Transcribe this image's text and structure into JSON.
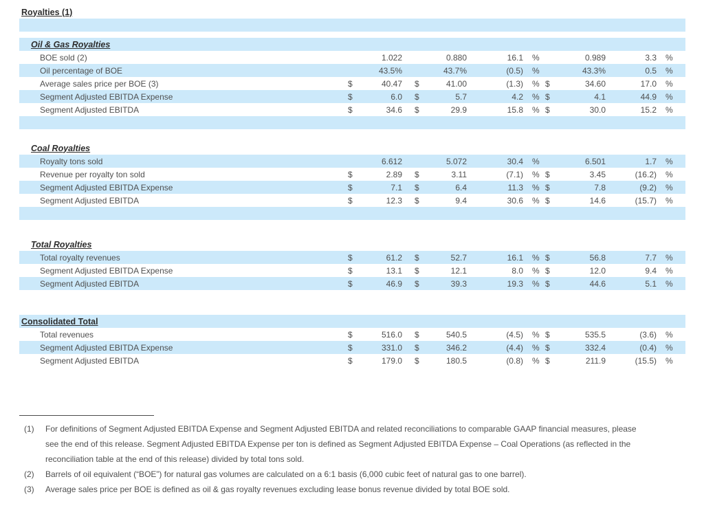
{
  "colors": {
    "row_highlight": "#cce9fa",
    "heading_text": "#2e2e2e",
    "body_text": "#4f4f4f"
  },
  "table": {
    "rows": [
      {
        "type": "title",
        "bg": "white",
        "label": "Royalties (1)"
      },
      {
        "type": "spacer",
        "bg": "blue"
      },
      {
        "type": "gap",
        "bg": "white",
        "h": 9
      },
      {
        "type": "section",
        "bg": "blue",
        "label": "Oil & Gas Royalties"
      },
      {
        "type": "data",
        "bg": "white",
        "label": "BOE sold (2)",
        "cells": [
          "",
          "1.022",
          "",
          "0.880",
          "16.1",
          "%",
          "",
          "0.989",
          "3.3",
          "%"
        ]
      },
      {
        "type": "data",
        "bg": "blue",
        "label": "Oil percentage of BOE",
        "cells": [
          "",
          "43.5%",
          "",
          "43.7%",
          "(0.5)",
          "%",
          "",
          "43.3%",
          "0.5",
          "%"
        ]
      },
      {
        "type": "data",
        "bg": "white",
        "label": "Average sales price per BOE (3)",
        "cells": [
          "$",
          "40.47",
          "$",
          "41.00",
          "(1.3)",
          "%",
          "$",
          "34.60",
          "17.0",
          "%"
        ]
      },
      {
        "type": "data",
        "bg": "blue",
        "label": "Segment Adjusted EBITDA Expense",
        "cells": [
          "$",
          "6.0",
          "$",
          "5.7",
          "4.2",
          "%",
          "$",
          "4.1",
          "44.9",
          "%"
        ]
      },
      {
        "type": "data",
        "bg": "white",
        "label": "Segment Adjusted EBITDA",
        "cells": [
          "$",
          "34.6",
          "$",
          "29.9",
          "15.8",
          "%",
          "$",
          "30.0",
          "15.2",
          "%"
        ]
      },
      {
        "type": "spacer",
        "bg": "blue"
      },
      {
        "type": "gap",
        "bg": "white",
        "h": 18
      },
      {
        "type": "section",
        "bg": "white",
        "label": "Coal Royalties"
      },
      {
        "type": "data",
        "bg": "blue",
        "label": "Royalty tons sold",
        "cells": [
          "",
          "6.612",
          "",
          "5.072",
          "30.4",
          "%",
          "",
          "6.501",
          "1.7",
          "%"
        ]
      },
      {
        "type": "data",
        "bg": "white",
        "label": "Revenue per royalty ton sold",
        "cells": [
          "$",
          "2.89",
          "$",
          "3.11",
          "(7.1)",
          "%",
          "$",
          "3.45",
          "(16.2)",
          "%"
        ]
      },
      {
        "type": "data",
        "bg": "blue",
        "label": "Segment Adjusted EBITDA Expense",
        "cells": [
          "$",
          "7.1",
          "$",
          "6.4",
          "11.3",
          "%",
          "$",
          "7.8",
          "(9.2)",
          "%"
        ]
      },
      {
        "type": "data",
        "bg": "white",
        "label": "Segment Adjusted EBITDA",
        "cells": [
          "$",
          "12.3",
          "$",
          "9.4",
          "30.6",
          "%",
          "$",
          "14.6",
          "(15.7)",
          "%"
        ]
      },
      {
        "type": "spacer",
        "bg": "blue"
      },
      {
        "type": "gap",
        "bg": "white",
        "h": 26
      },
      {
        "type": "section",
        "bg": "white",
        "label": "Total Royalties"
      },
      {
        "type": "data",
        "bg": "blue",
        "label": "Total royalty revenues",
        "cells": [
          "$",
          "61.2",
          "$",
          "52.7",
          "16.1",
          "%",
          "$",
          "56.8",
          "7.7",
          "%"
        ]
      },
      {
        "type": "data",
        "bg": "white",
        "label": "Segment Adjusted EBITDA Expense",
        "cells": [
          "$",
          "13.1",
          "$",
          "12.1",
          "8.0",
          "%",
          "$",
          "12.0",
          "9.4",
          "%"
        ]
      },
      {
        "type": "data",
        "bg": "blue",
        "label": "Segment Adjusted EBITDA",
        "cells": [
          "$",
          "46.9",
          "$",
          "39.3",
          "19.3",
          "%",
          "$",
          "44.6",
          "5.1",
          "%"
        ]
      },
      {
        "type": "gap",
        "bg": "white",
        "h": 36
      },
      {
        "type": "title",
        "bg": "blue",
        "label": "Consolidated Total"
      },
      {
        "type": "data",
        "bg": "white",
        "label": "Total revenues",
        "cells": [
          "$",
          "516.0",
          "$",
          "540.5",
          "(4.5)",
          "%",
          "$",
          "535.5",
          "(3.6)",
          "%"
        ]
      },
      {
        "type": "data",
        "bg": "blue",
        "label": "Segment Adjusted EBITDA Expense",
        "cells": [
          "$",
          "331.0",
          "$",
          "346.2",
          "(4.4)",
          "%",
          "$",
          "332.4",
          "(0.4)",
          "%"
        ]
      },
      {
        "type": "data",
        "bg": "white",
        "label": "Segment Adjusted EBITDA",
        "cells": [
          "$",
          "179.0",
          "$",
          "180.5",
          "(0.8)",
          "%",
          "$",
          "211.9",
          "(15.5)",
          "%"
        ]
      }
    ]
  },
  "footnotes": [
    {
      "marker": "(1)",
      "text": "For definitions of Segment Adjusted EBITDA Expense and Segment Adjusted EBITDA and related reconciliations to comparable GAAP financial measures, please see the end of this release. Segment Adjusted EBITDA Expense per ton is defined as Segment Adjusted EBITDA Expense – Coal Operations (as reflected in the reconciliation table at the end of this release) divided by total tons sold."
    },
    {
      "marker": "(2)",
      "text": "Barrels of oil equivalent (“BOE”) for natural gas volumes are calculated on a 6:1 basis (6,000 cubic feet of natural gas to one barrel)."
    },
    {
      "marker": "(3)",
      "text": "Average sales price per BOE is defined as oil & gas royalty revenues excluding lease bonus revenue divided by total BOE sold."
    }
  ]
}
